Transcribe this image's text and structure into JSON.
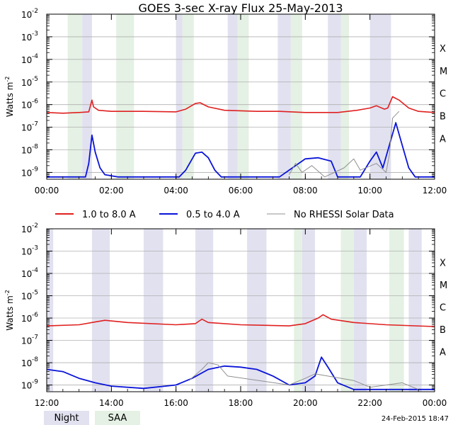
{
  "title": "GOES 3-sec X-ray Flux   25-May-2013",
  "timestamp": "24-Feb-2015 18:47",
  "ylabel": "Watts m",
  "ylabel_exp": "-2",
  "legend": {
    "long": "1.0 to 8.0 A",
    "short": "0.5 to 4.0 A",
    "gray": "No RHESSI Solar Data",
    "night": "Night",
    "saa": "SAA"
  },
  "colors": {
    "long": "#e02020",
    "short": "#0a14d8",
    "gray": "#909090",
    "night": "#e1e1f0",
    "saa": "#e4f1e4"
  },
  "chart_data": [
    {
      "type": "line",
      "panel": "top",
      "x_unit": "hours UT",
      "xlim": [
        0,
        12
      ],
      "ylim_log10": [
        -9.3,
        -2
      ],
      "x_ticks": [
        "00:00",
        "02:00",
        "04:00",
        "06:00",
        "08:00",
        "10:00",
        "12:00"
      ],
      "y_ticks": [
        {
          "base": "10",
          "exp": "-2",
          "v": -2
        },
        {
          "base": "10",
          "exp": "-3",
          "v": -3
        },
        {
          "base": "10",
          "exp": "-4",
          "v": -4
        },
        {
          "base": "10",
          "exp": "-5",
          "v": -5
        },
        {
          "base": "10",
          "exp": "-6",
          "v": -6
        },
        {
          "base": "10",
          "exp": "-7",
          "v": -7
        },
        {
          "base": "10",
          "exp": "-8",
          "v": -8
        },
        {
          "base": "10",
          "exp": "-9",
          "v": -9
        }
      ],
      "classes": [
        {
          "label": "X",
          "v": -4
        },
        {
          "label": "M",
          "v": -5
        },
        {
          "label": "C",
          "v": -6
        },
        {
          "label": "B",
          "v": -7
        },
        {
          "label": "A",
          "v": -8
        }
      ],
      "night": [
        [
          1.1,
          1.4
        ],
        [
          4.0,
          4.2
        ],
        [
          5.6,
          5.9
        ],
        [
          7.15,
          7.55
        ],
        [
          8.7,
          9.1
        ],
        [
          10.0,
          10.65
        ]
      ],
      "saa": [
        [
          0.65,
          1.1
        ],
        [
          2.15,
          2.7
        ],
        [
          4.2,
          4.55
        ],
        [
          5.9,
          6.25
        ],
        [
          7.55,
          7.9
        ],
        [
          9.1,
          9.35
        ]
      ],
      "series": [
        {
          "name": "1.0 to 8.0 A",
          "color": "long",
          "points": [
            [
              0,
              -6.35
            ],
            [
              0.5,
              -6.38
            ],
            [
              1.0,
              -6.35
            ],
            [
              1.3,
              -6.32
            ],
            [
              1.4,
              -5.8
            ],
            [
              1.45,
              -6.1
            ],
            [
              1.6,
              -6.25
            ],
            [
              2.0,
              -6.3
            ],
            [
              3.0,
              -6.3
            ],
            [
              4.0,
              -6.32
            ],
            [
              4.3,
              -6.2
            ],
            [
              4.6,
              -5.95
            ],
            [
              4.75,
              -5.92
            ],
            [
              5.0,
              -6.1
            ],
            [
              5.5,
              -6.25
            ],
            [
              6.5,
              -6.3
            ],
            [
              7.2,
              -6.3
            ],
            [
              8.0,
              -6.35
            ],
            [
              9.0,
              -6.35
            ],
            [
              9.6,
              -6.25
            ],
            [
              10.0,
              -6.15
            ],
            [
              10.2,
              -6.05
            ],
            [
              10.45,
              -6.2
            ],
            [
              10.55,
              -6.15
            ],
            [
              10.7,
              -5.65
            ],
            [
              10.9,
              -5.8
            ],
            [
              11.2,
              -6.15
            ],
            [
              11.5,
              -6.3
            ],
            [
              12.0,
              -6.35
            ]
          ]
        },
        {
          "name": "0.5 to 4.0 A",
          "color": "short",
          "points": [
            [
              0,
              -9.2
            ],
            [
              1.2,
              -9.2
            ],
            [
              1.3,
              -8.6
            ],
            [
              1.4,
              -7.35
            ],
            [
              1.5,
              -8.1
            ],
            [
              1.65,
              -8.8
            ],
            [
              1.8,
              -9.1
            ],
            [
              2.2,
              -9.2
            ],
            [
              4.1,
              -9.2
            ],
            [
              4.3,
              -8.9
            ],
            [
              4.5,
              -8.4
            ],
            [
              4.6,
              -8.15
            ],
            [
              4.8,
              -8.1
            ],
            [
              5.0,
              -8.35
            ],
            [
              5.2,
              -8.9
            ],
            [
              5.4,
              -9.2
            ],
            [
              7.2,
              -9.2
            ],
            [
              7.6,
              -8.8
            ],
            [
              8.0,
              -8.4
            ],
            [
              8.4,
              -8.35
            ],
            [
              8.8,
              -8.5
            ],
            [
              9.0,
              -9.2
            ],
            [
              9.7,
              -9.2
            ],
            [
              10.0,
              -8.5
            ],
            [
              10.2,
              -8.1
            ],
            [
              10.4,
              -8.8
            ],
            [
              10.8,
              -6.8
            ],
            [
              11.0,
              -7.8
            ],
            [
              11.2,
              -8.8
            ],
            [
              11.4,
              -9.2
            ],
            [
              12.0,
              -9.2
            ]
          ]
        },
        {
          "name": "No RHESSI Solar Data",
          "color": "gray",
          "points": [
            [
              7.5,
              -9.1
            ],
            [
              7.7,
              -8.6
            ],
            [
              7.9,
              -9.0
            ],
            [
              8.2,
              -8.7
            ],
            [
              8.6,
              -9.2
            ],
            [
              9.2,
              -8.8
            ],
            [
              9.5,
              -8.4
            ],
            [
              9.7,
              -8.9
            ],
            [
              10.2,
              -8.6
            ],
            [
              10.5,
              -9.0
            ],
            [
              10.6,
              -8.2
            ],
            [
              10.7,
              -6.6
            ],
            [
              10.9,
              -6.3
            ]
          ]
        }
      ]
    },
    {
      "type": "line",
      "panel": "bottom",
      "x_unit": "hours UT",
      "xlim": [
        12,
        24
      ],
      "ylim_log10": [
        -9.3,
        -2
      ],
      "x_ticks": [
        "12:00",
        "14:00",
        "16:00",
        "18:00",
        "20:00",
        "22:00",
        "00:00"
      ],
      "y_ticks": [
        {
          "base": "10",
          "exp": "-2",
          "v": -2
        },
        {
          "base": "10",
          "exp": "-3",
          "v": -3
        },
        {
          "base": "10",
          "exp": "-4",
          "v": -4
        },
        {
          "base": "10",
          "exp": "-5",
          "v": -5
        },
        {
          "base": "10",
          "exp": "-6",
          "v": -6
        },
        {
          "base": "10",
          "exp": "-7",
          "v": -7
        },
        {
          "base": "10",
          "exp": "-8",
          "v": -8
        },
        {
          "base": "10",
          "exp": "-9",
          "v": -9
        }
      ],
      "classes": [
        {
          "label": "X",
          "v": -4
        },
        {
          "label": "M",
          "v": -5
        },
        {
          "label": "C",
          "v": -6
        },
        {
          "label": "B",
          "v": -7
        },
        {
          "label": "A",
          "v": -8
        }
      ],
      "night": [
        [
          12.0,
          12.2
        ],
        [
          13.4,
          13.95
        ],
        [
          15.0,
          15.6
        ],
        [
          16.6,
          17.15
        ],
        [
          18.2,
          18.8
        ],
        [
          19.9,
          20.3
        ],
        [
          21.5,
          21.9
        ],
        [
          23.2,
          23.6
        ]
      ],
      "saa": [
        [
          19.65,
          19.9
        ],
        [
          21.1,
          21.5
        ],
        [
          22.6,
          23.05
        ]
      ],
      "series": [
        {
          "name": "1.0 to 8.0 A",
          "color": "long",
          "points": [
            [
              12.0,
              -6.35
            ],
            [
              13.0,
              -6.3
            ],
            [
              13.4,
              -6.2
            ],
            [
              13.8,
              -6.1
            ],
            [
              14.5,
              -6.2
            ],
            [
              16.0,
              -6.3
            ],
            [
              16.6,
              -6.25
            ],
            [
              16.8,
              -6.05
            ],
            [
              17.0,
              -6.2
            ],
            [
              18.0,
              -6.3
            ],
            [
              19.5,
              -6.35
            ],
            [
              20.0,
              -6.25
            ],
            [
              20.4,
              -6.0
            ],
            [
              20.55,
              -5.85
            ],
            [
              20.8,
              -6.05
            ],
            [
              21.5,
              -6.2
            ],
            [
              22.5,
              -6.3
            ],
            [
              24.0,
              -6.38
            ]
          ]
        },
        {
          "name": "0.5 to 4.0 A",
          "color": "short",
          "points": [
            [
              12.0,
              -8.3
            ],
            [
              12.5,
              -8.4
            ],
            [
              13.0,
              -8.7
            ],
            [
              13.5,
              -8.9
            ],
            [
              14.0,
              -9.05
            ],
            [
              15.0,
              -9.15
            ],
            [
              16.0,
              -9.0
            ],
            [
              16.5,
              -8.7
            ],
            [
              17.0,
              -8.3
            ],
            [
              17.5,
              -8.15
            ],
            [
              18.0,
              -8.2
            ],
            [
              18.5,
              -8.3
            ],
            [
              19.0,
              -8.6
            ],
            [
              19.5,
              -9.0
            ],
            [
              20.0,
              -8.9
            ],
            [
              20.3,
              -8.6
            ],
            [
              20.5,
              -7.75
            ],
            [
              20.7,
              -8.2
            ],
            [
              21.0,
              -8.9
            ],
            [
              21.5,
              -9.2
            ],
            [
              24.0,
              -9.2
            ]
          ]
        },
        {
          "name": "No RHESSI Solar Data",
          "color": "gray",
          "points": [
            [
              16.4,
              -8.8
            ],
            [
              16.8,
              -8.3
            ],
            [
              17.0,
              -8.0
            ],
            [
              17.3,
              -8.1
            ],
            [
              17.6,
              -8.6
            ],
            [
              19.5,
              -9.0
            ],
            [
              20.0,
              -8.7
            ],
            [
              20.3,
              -8.5
            ],
            [
              21.5,
              -8.8
            ],
            [
              22.0,
              -9.1
            ],
            [
              23.0,
              -8.9
            ],
            [
              23.5,
              -9.2
            ]
          ]
        }
      ]
    }
  ]
}
